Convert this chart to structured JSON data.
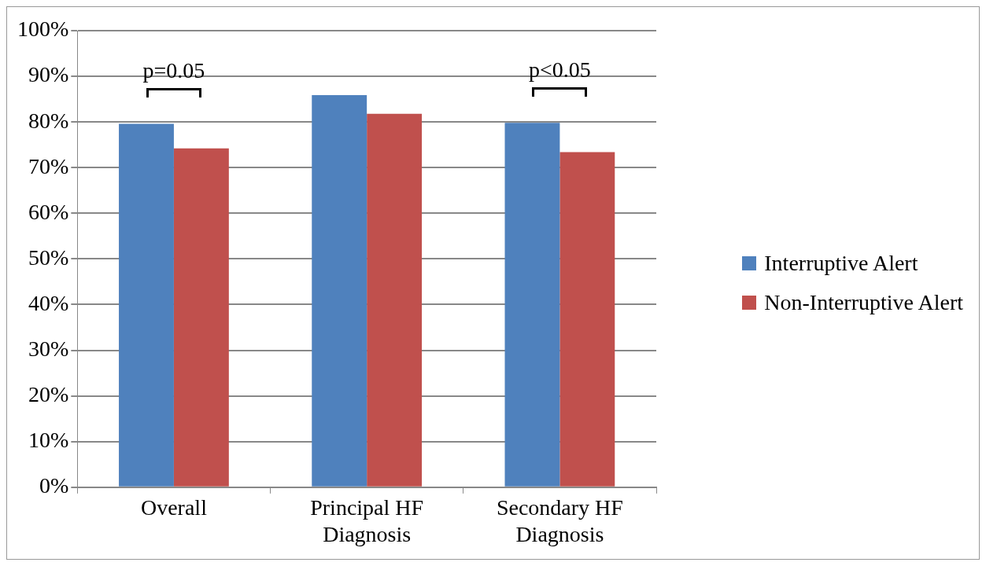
{
  "chart_data": {
    "type": "bar",
    "categories": [
      "Overall",
      "Principal HF Diagnosis",
      "Secondary HF Diagnosis"
    ],
    "series": [
      {
        "name": "Interruptive Alert",
        "color": "#4f81bd",
        "values": [
          79.6,
          85.9,
          79.8
        ]
      },
      {
        "name": "Non-Interruptive Alert",
        "color": "#c0504d",
        "values": [
          74.2,
          81.8,
          73.4
        ]
      }
    ],
    "ylim": [
      0,
      100
    ],
    "yticks": [
      {
        "value": 0,
        "label": "0%"
      },
      {
        "value": 10,
        "label": "10%"
      },
      {
        "value": 20,
        "label": "20%"
      },
      {
        "value": 30,
        "label": "30%"
      },
      {
        "value": 40,
        "label": "40%"
      },
      {
        "value": 50,
        "label": "50%"
      },
      {
        "value": 60,
        "label": "60%"
      },
      {
        "value": 70,
        "label": "70%"
      },
      {
        "value": 80,
        "label": "80%"
      },
      {
        "value": 90,
        "label": "90%"
      },
      {
        "value": 100,
        "label": "100%"
      }
    ],
    "grid": "y",
    "legend": "right",
    "annotations": [
      "p=0.05",
      "p<0.05"
    ]
  }
}
